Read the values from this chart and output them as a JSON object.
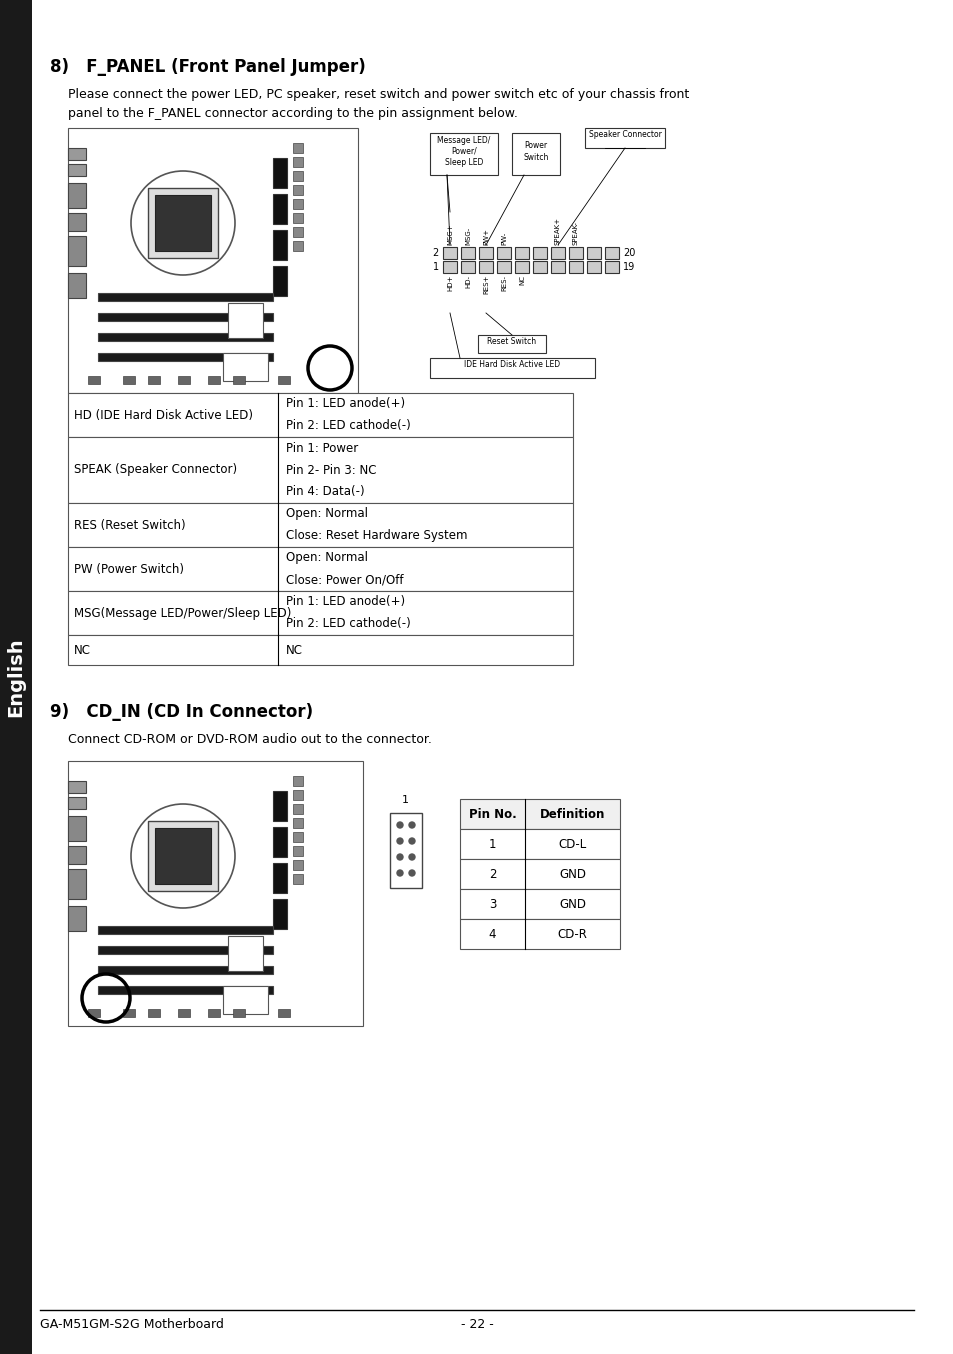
{
  "title_8": "8)   F_PANEL (Front Panel Jumper)",
  "body_8_line1": "Please connect the power LED, PC speaker, reset switch and power switch etc of your chassis front",
  "body_8_line2": "panel to the F_PANEL connector according to the pin assignment below.",
  "table_8_rows": [
    [
      "HD (IDE Hard Disk Active LED)",
      "Pin 1: LED anode(+)"
    ],
    [
      "",
      "Pin 2: LED cathode(-)"
    ],
    [
      "SPEAK (Speaker Connector)",
      "Pin 1: Power"
    ],
    [
      "",
      "Pin 2- Pin 3: NC"
    ],
    [
      "",
      "Pin 4: Data(-)"
    ],
    [
      "RES (Reset Switch)",
      "Open: Normal"
    ],
    [
      "",
      "Close: Reset Hardware System"
    ],
    [
      "PW (Power Switch)",
      "Open: Normal"
    ],
    [
      "",
      "Close: Power On/Off"
    ],
    [
      "MSG(Message LED/Power/Sleep LED)",
      "Pin 1: LED anode(+)"
    ],
    [
      "",
      "Pin 2: LED cathode(-)"
    ],
    [
      "NC",
      "NC"
    ]
  ],
  "title_9": "9)   CD_IN (CD In Connector)",
  "body_9": "Connect CD-ROM or DVD-ROM audio out to the connector.",
  "cd_in_table": [
    [
      "Pin No.",
      "Definition"
    ],
    [
      "1",
      "CD-L"
    ],
    [
      "2",
      "GND"
    ],
    [
      "3",
      "GND"
    ],
    [
      "4",
      "CD-R"
    ]
  ],
  "footer_left": "GA-M51GM-S2G Motherboard",
  "footer_right": "- 22 -",
  "sidebar_text": "English",
  "bg_color": "#ffffff",
  "text_color": "#000000",
  "sidebar_bg": "#1a1a1a",
  "sidebar_text_color": "#ffffff"
}
